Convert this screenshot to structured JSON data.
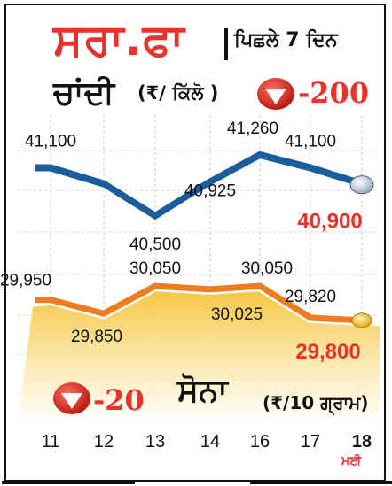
{
  "header": {
    "title": "ਸਰਾ.ਫਾ",
    "subtitle": "ਪਿਛਲੇ 7 ਦਿਨ"
  },
  "silver": {
    "title": "ਚਾਂਦੀ",
    "unit": "(₹/ ਕਿੱਲੋ )",
    "change": "-200",
    "icon": "down-arrow-icon"
  },
  "gold": {
    "title": "ਸੋਨਾ",
    "unit": "(₹/10 ਗ੍ਰਾਮ)",
    "change": "-20",
    "icon": "down-arrow-icon"
  },
  "month_label": "ਮਈ",
  "colors": {
    "accent_red": "#e8322b",
    "silver_line": "#1b5d9c",
    "gold_line": "#f07c1f",
    "gold_area": "#f6c945"
  },
  "chart_data": {
    "type": "line",
    "x": [
      "11",
      "12",
      "13",
      "14",
      "16",
      "17",
      "18"
    ],
    "highlight_x": "18",
    "series": [
      {
        "name": "ਚਾਂਦੀ",
        "values": [
          41100,
          40900,
          40500,
          40925,
          41260,
          41100,
          40900
        ],
        "labels": [
          "41,100",
          "",
          "40,500",
          "40,925",
          "41,260",
          "41,100",
          "40,900"
        ]
      },
      {
        "name": "ਸੋਨਾ",
        "values": [
          29950,
          29850,
          30050,
          30025,
          30050,
          29820,
          29800
        ],
        "labels": [
          "29,950",
          "29,850",
          "30,050",
          "30,025",
          "30,050",
          "29,820",
          "29,800"
        ]
      }
    ]
  }
}
